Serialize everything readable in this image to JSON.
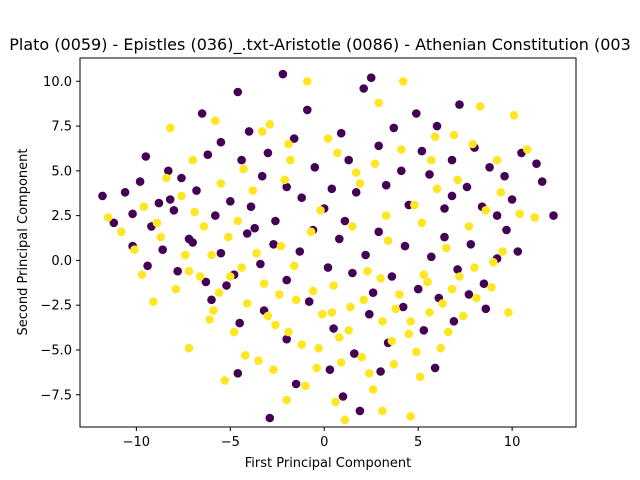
{
  "chart_data": {
    "type": "scatter",
    "title": "Plato (0059) - Epistles (036)_.txt-Aristotle (0086) - Athenian Constitution (003",
    "xlabel": "First Principal Component",
    "ylabel": "Second Principal Component",
    "xlim": [
      -13.0,
      13.4
    ],
    "ylim": [
      -9.3,
      11.3
    ],
    "xticks": [
      -10,
      -5,
      0,
      5,
      10
    ],
    "yticks": [
      -7.5,
      -5.0,
      -2.5,
      0.0,
      2.5,
      5.0,
      7.5,
      10.0
    ],
    "xtick_labels": [
      "−10",
      "−5",
      "0",
      "5",
      "10"
    ],
    "ytick_labels": [
      "−7.5",
      "−5.0",
      "−2.5",
      "0.0",
      "2.5",
      "5.0",
      "7.5",
      "10.0"
    ],
    "grid": false,
    "series": [
      {
        "color": "#440154",
        "points": [
          [
            -11.8,
            3.6
          ],
          [
            -11.2,
            2.1
          ],
          [
            -10.6,
            3.8
          ],
          [
            -10.2,
            2.6
          ],
          [
            -9.8,
            4.4
          ],
          [
            -9.5,
            5.8
          ],
          [
            -9.2,
            1.9
          ],
          [
            -8.8,
            3.2
          ],
          [
            -8.3,
            5.0
          ],
          [
            -8.0,
            2.8
          ],
          [
            -7.6,
            4.6
          ],
          [
            -7.2,
            1.2
          ],
          [
            -6.8,
            3.9
          ],
          [
            -6.5,
            8.2
          ],
          [
            -6.2,
            5.9
          ],
          [
            -5.8,
            2.5
          ],
          [
            -5.5,
            6.6
          ],
          [
            -5.0,
            3.3
          ],
          [
            -4.6,
            9.4
          ],
          [
            -4.4,
            5.6
          ],
          [
            -4.0,
            7.2
          ],
          [
            -3.7,
            1.8
          ],
          [
            -3.3,
            4.7
          ],
          [
            -3.0,
            6.0
          ],
          [
            -2.6,
            2.2
          ],
          [
            -2.2,
            10.4
          ],
          [
            -2.0,
            4.1
          ],
          [
            -1.6,
            6.8
          ],
          [
            -1.2,
            3.5
          ],
          [
            -0.9,
            8.4
          ],
          [
            -0.5,
            5.2
          ],
          [
            0.0,
            2.9
          ],
          [
            0.4,
            4.0
          ],
          [
            0.9,
            7.1
          ],
          [
            1.3,
            5.6
          ],
          [
            1.7,
            3.8
          ],
          [
            2.1,
            9.6
          ],
          [
            2.5,
            10.2
          ],
          [
            2.9,
            6.4
          ],
          [
            3.3,
            4.2
          ],
          [
            3.7,
            7.4
          ],
          [
            4.1,
            5.0
          ],
          [
            4.5,
            3.1
          ],
          [
            4.9,
            8.2
          ],
          [
            5.2,
            6.1
          ],
          [
            5.6,
            4.8
          ],
          [
            6.0,
            7.5
          ],
          [
            6.4,
            2.9
          ],
          [
            6.8,
            5.6
          ],
          [
            7.2,
            8.7
          ],
          [
            7.6,
            4.1
          ],
          [
            8.0,
            6.3
          ],
          [
            8.4,
            3.0
          ],
          [
            8.8,
            5.2
          ],
          [
            9.2,
            2.5
          ],
          [
            9.6,
            4.7
          ],
          [
            10.0,
            3.4
          ],
          [
            10.5,
            6.0
          ],
          [
            11.3,
            5.4
          ],
          [
            11.6,
            4.4
          ],
          [
            12.2,
            2.5
          ],
          [
            -10.2,
            0.8
          ],
          [
            -9.4,
            -0.3
          ],
          [
            -8.6,
            0.6
          ],
          [
            -7.8,
            -0.6
          ],
          [
            -7.0,
            1.0
          ],
          [
            -6.3,
            -1.2
          ],
          [
            -5.5,
            0.4
          ],
          [
            -4.8,
            -0.8
          ],
          [
            -4.1,
            1.5
          ],
          [
            -3.4,
            -0.2
          ],
          [
            -2.7,
            0.9
          ],
          [
            -2.0,
            -1.1
          ],
          [
            -1.3,
            0.5
          ],
          [
            -0.6,
            1.7
          ],
          [
            0.2,
            -0.4
          ],
          [
            0.8,
            1.2
          ],
          [
            1.5,
            -0.7
          ],
          [
            2.2,
            0.3
          ],
          [
            2.9,
            1.6
          ],
          [
            3.6,
            -0.9
          ],
          [
            4.3,
            0.8
          ],
          [
            5.0,
            -1.6
          ],
          [
            5.7,
            0.2
          ],
          [
            6.4,
            1.3
          ],
          [
            7.1,
            -0.5
          ],
          [
            7.8,
            0.9
          ],
          [
            8.5,
            -1.3
          ],
          [
            9.2,
            0.1
          ],
          [
            -6.0,
            -2.2
          ],
          [
            -4.5,
            -3.5
          ],
          [
            -3.2,
            -2.8
          ],
          [
            -2.0,
            -4.4
          ],
          [
            -0.8,
            -2.3
          ],
          [
            0.5,
            -3.8
          ],
          [
            1.6,
            -5.2
          ],
          [
            2.4,
            -3.0
          ],
          [
            3.4,
            -4.6
          ],
          [
            4.2,
            -2.6
          ],
          [
            5.3,
            -3.9
          ],
          [
            6.1,
            -2.1
          ],
          [
            6.9,
            -3.4
          ],
          [
            7.7,
            -1.9
          ],
          [
            8.6,
            -2.7
          ],
          [
            1.0,
            -7.6
          ],
          [
            1.9,
            -8.4
          ],
          [
            -2.9,
            -8.8
          ],
          [
            -4.6,
            -6.3
          ],
          [
            3.0,
            -6.2
          ],
          [
            5.9,
            -6.0
          ],
          [
            -1.5,
            -6.9
          ],
          [
            0.3,
            -6.1
          ],
          [
            2.6,
            -1.8
          ],
          [
            -5.2,
            -1.4
          ],
          [
            9.7,
            1.7
          ],
          [
            10.3,
            0.5
          ],
          [
            -8.2,
            3.4
          ],
          [
            -3.9,
            3.0
          ],
          [
            1.1,
            2.2
          ],
          [
            6.8,
            3.6
          ]
        ]
      },
      {
        "color": "#fde725",
        "points": [
          [
            -11.5,
            2.4
          ],
          [
            -10.8,
            1.6
          ],
          [
            -10.1,
            0.6
          ],
          [
            -9.6,
            3.0
          ],
          [
            -9.1,
            -2.3
          ],
          [
            -8.7,
            1.3
          ],
          [
            -8.2,
            7.4
          ],
          [
            -7.9,
            -1.6
          ],
          [
            -7.4,
            0.3
          ],
          [
            -7.2,
            -4.9
          ],
          [
            -6.9,
            2.7
          ],
          [
            -6.6,
            -0.9
          ],
          [
            -6.1,
            -3.3
          ],
          [
            -5.8,
            7.8
          ],
          [
            -5.6,
            -1.8
          ],
          [
            -5.3,
            -6.7
          ],
          [
            -5.1,
            1.3
          ],
          [
            -4.8,
            -4.0
          ],
          [
            -4.4,
            -0.4
          ],
          [
            -4.1,
            -2.4
          ],
          [
            -3.8,
            3.9
          ],
          [
            -3.5,
            -5.6
          ],
          [
            -3.2,
            -1.3
          ],
          [
            -2.9,
            7.6
          ],
          [
            -2.6,
            -3.6
          ],
          [
            -2.3,
            0.8
          ],
          [
            -2.0,
            -7.8
          ],
          [
            -1.8,
            5.6
          ],
          [
            -1.5,
            -2.2
          ],
          [
            -1.2,
            -4.7
          ],
          [
            -0.9,
            10.0
          ],
          [
            -0.7,
            1.6
          ],
          [
            -0.4,
            -6.0
          ],
          [
            -0.1,
            -3.0
          ],
          [
            0.2,
            6.8
          ],
          [
            0.5,
            -1.4
          ],
          [
            0.8,
            -4.3
          ],
          [
            1.1,
            -8.9
          ],
          [
            1.4,
            -2.6
          ],
          [
            1.7,
            4.9
          ],
          [
            2.0,
            -5.4
          ],
          [
            2.3,
            -0.6
          ],
          [
            2.6,
            -7.2
          ],
          [
            2.9,
            8.8
          ],
          [
            3.1,
            -3.4
          ],
          [
            3.4,
            1.1
          ],
          [
            3.7,
            -5.8
          ],
          [
            4.0,
            -1.9
          ],
          [
            4.2,
            10.0
          ],
          [
            4.5,
            -4.1
          ],
          [
            4.8,
            3.1
          ],
          [
            5.1,
            -6.5
          ],
          [
            5.3,
            -0.8
          ],
          [
            5.6,
            -2.9
          ],
          [
            5.9,
            6.9
          ],
          [
            6.2,
            -4.9
          ],
          [
            6.5,
            0.7
          ],
          [
            6.8,
            -1.6
          ],
          [
            7.1,
            4.5
          ],
          [
            7.4,
            -3.1
          ],
          [
            7.7,
            1.9
          ],
          [
            8.0,
            -0.4
          ],
          [
            8.3,
            8.6
          ],
          [
            8.6,
            2.8
          ],
          [
            8.9,
            -1.5
          ],
          [
            9.2,
            5.6
          ],
          [
            9.5,
            0.5
          ],
          [
            9.8,
            -2.9
          ],
          [
            10.1,
            8.1
          ],
          [
            10.4,
            2.6
          ],
          [
            10.8,
            6.2
          ],
          [
            11.2,
            2.4
          ],
          [
            -9.7,
            -0.8
          ],
          [
            -8.9,
            2.1
          ],
          [
            -7.6,
            3.6
          ],
          [
            -6.4,
            1.9
          ],
          [
            -5.9,
            -2.8
          ],
          [
            -4.6,
            2.2
          ],
          [
            -3.6,
            0.4
          ],
          [
            -2.4,
            -1.9
          ],
          [
            -1.6,
            -0.3
          ],
          [
            -0.6,
            -1.7
          ],
          [
            0.4,
            -2.9
          ],
          [
            1.3,
            -3.9
          ],
          [
            2.1,
            -2.2
          ],
          [
            3.0,
            -1.0
          ],
          [
            3.8,
            -2.7
          ],
          [
            4.6,
            -3.4
          ],
          [
            5.5,
            -1.2
          ],
          [
            6.3,
            -2.4
          ],
          [
            7.2,
            -0.9
          ],
          [
            8.1,
            -2.1
          ],
          [
            9.0,
            -0.1
          ],
          [
            -7.2,
            -0.6
          ],
          [
            -6.0,
            0.3
          ],
          [
            -5.0,
            -0.9
          ],
          [
            -3.0,
            -3.1
          ],
          [
            -1.9,
            -4.0
          ],
          [
            -0.3,
            -4.9
          ],
          [
            0.9,
            -5.7
          ],
          [
            2.4,
            -6.3
          ],
          [
            3.6,
            -4.5
          ],
          [
            4.9,
            -5.1
          ],
          [
            6.6,
            -4.0
          ],
          [
            -4.2,
            -5.3
          ],
          [
            -2.7,
            -6.1
          ],
          [
            -1.0,
            -7.0
          ],
          [
            0.6,
            -7.9
          ],
          [
            3.1,
            -8.4
          ],
          [
            4.6,
            -8.7
          ],
          [
            -3.3,
            7.2
          ],
          [
            -1.9,
            6.5
          ],
          [
            0.7,
            6.0
          ],
          [
            1.9,
            4.3
          ],
          [
            2.7,
            5.4
          ],
          [
            4.1,
            6.2
          ],
          [
            5.7,
            5.6
          ],
          [
            6.9,
            7.0
          ],
          [
            7.9,
            6.5
          ],
          [
            9.4,
            3.8
          ],
          [
            -8.4,
            4.6
          ],
          [
            -7.0,
            5.6
          ],
          [
            -5.5,
            4.3
          ],
          [
            -4.3,
            5.1
          ],
          [
            -2.1,
            4.5
          ],
          [
            -0.2,
            2.8
          ],
          [
            1.5,
            1.9
          ],
          [
            3.3,
            2.5
          ],
          [
            5.2,
            2.1
          ],
          [
            6.0,
            4.0
          ]
        ]
      }
    ]
  }
}
